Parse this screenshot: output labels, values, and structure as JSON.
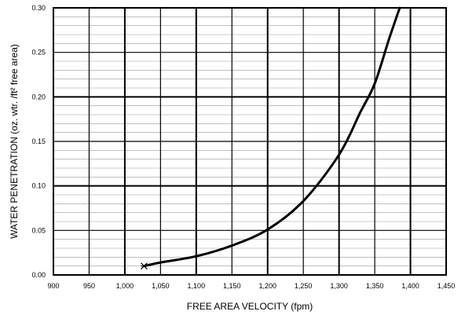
{
  "chart_data": {
    "type": "line",
    "title": "",
    "xlabel": "FREE AREA VELOCITY (fpm)",
    "ylabel": "WATER PENETRATION (oz. wtr. /ft² free area)",
    "xlim": [
      900,
      1450
    ],
    "ylim": [
      0.0,
      0.3
    ],
    "x_ticks": [
      900,
      950,
      1000,
      1050,
      1100,
      1150,
      1200,
      1250,
      1300,
      1350,
      1400,
      1450
    ],
    "x_tick_labels": [
      "900",
      "950",
      "1,000",
      "1,050",
      "1,100",
      "1,150",
      "1,200",
      "1,250",
      "1,300",
      "1,350",
      "1,400",
      "1,450"
    ],
    "y_ticks": [
      0.0,
      0.05,
      0.1,
      0.15,
      0.2,
      0.25,
      0.3
    ],
    "y_tick_labels": [
      "0.00",
      "0.05",
      "0.10",
      "0.15",
      "0.20",
      "0.25",
      "0.30"
    ],
    "grid": true,
    "legend": "none",
    "series": [
      {
        "x": [
          1027,
          1050,
          1100,
          1150,
          1200,
          1250,
          1300,
          1330,
          1350,
          1370,
          1385
        ],
        "y": [
          0.01,
          0.014,
          0.021,
          0.033,
          0.051,
          0.083,
          0.135,
          0.183,
          0.215,
          0.265,
          0.3
        ]
      }
    ],
    "markers": [
      {
        "x": 1027,
        "y": 0.01,
        "symbol": "asterisk"
      }
    ],
    "colors": {
      "curve": "#000000",
      "grid_minor": "#9a9a9a",
      "grid_major": "#000000"
    }
  }
}
